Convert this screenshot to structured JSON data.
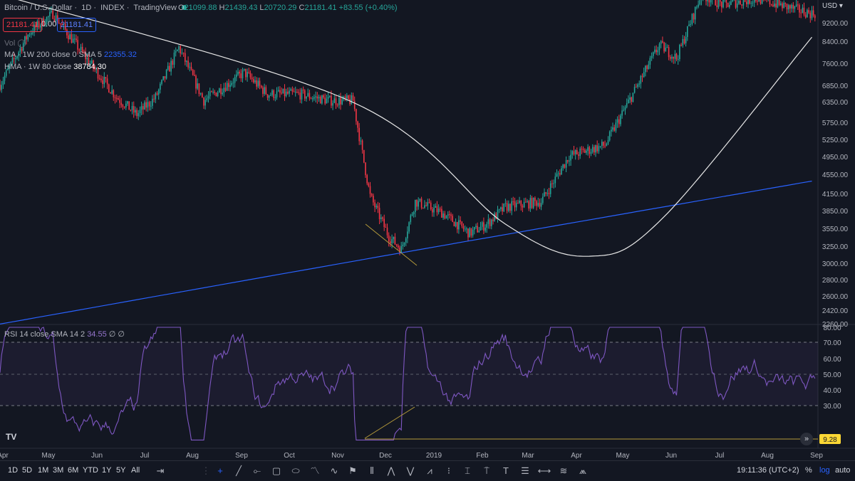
{
  "header": {
    "symbol": "Bitcoin / U.S. Dollar",
    "interval": "1D",
    "source": "INDEX",
    "platform": "TradingView",
    "ohlc": {
      "o_label": "O",
      "o": "21099.88",
      "h_label": "H",
      "h": "21439.43",
      "l_label": "L",
      "l": "20720.29",
      "c_label": "C",
      "c": "21181.41",
      "change": "+83.55 (+0.40%)"
    }
  },
  "trade": {
    "sell": "21181.41",
    "spread": "0.00",
    "buy": "21181.41"
  },
  "indicators": {
    "vol": "Vol",
    "ma_label": "MA · 1W 200 close 0 SMA 5",
    "ma_value": "22355.32",
    "hma_label": "HMA · 1W 80 close",
    "hma_value": "38784.30"
  },
  "rsi": {
    "label": "RSI 14 close SMA 14 2",
    "value": "34.55",
    "extra": "∅ ∅",
    "last": "9.28"
  },
  "currency": "USD",
  "price_axis": [
    "9200.00",
    "8400.00",
    "7600.00",
    "6850.00",
    "6350.00",
    "5750.00",
    "5250.00",
    "4950.00",
    "4550.00",
    "4150.00",
    "3850.00",
    "3550.00",
    "3250.00",
    "3000.00",
    "2800.00",
    "2600.00",
    "2420.00",
    "2260.00"
  ],
  "rsi_axis": [
    "80.00",
    "70.00",
    "60.00",
    "50.00",
    "40.00",
    "30.00"
  ],
  "time_axis": [
    "Apr",
    "May",
    "Jun",
    "Jul",
    "Aug",
    "Sep",
    "Oct",
    "Nov",
    "Dec",
    "2019",
    "Feb",
    "Mar",
    "Apr",
    "May",
    "Jun",
    "Jul",
    "Aug",
    "Sep"
  ],
  "toolbar": {
    "ranges": [
      "1D",
      "5D",
      "1M",
      "3M",
      "6M",
      "YTD",
      "1Y",
      "5Y",
      "All"
    ],
    "clock": "19:11:36 (UTC+2)",
    "percent": "%",
    "log": "log",
    "auto": "auto"
  },
  "colors": {
    "up": "#26a69a",
    "down": "#f23645",
    "ma": "#2962ff",
    "hma": "#e8e8e8",
    "rsi": "#7e57c2",
    "trend": "#b59a3a"
  },
  "chart_data": {
    "type": "candlestick",
    "y_scale": "log",
    "x": [
      "2018-04",
      "2018-05",
      "2018-06",
      "2018-07",
      "2018-08",
      "2018-09",
      "2018-10",
      "2018-11",
      "2018-12",
      "2019-01",
      "2019-02",
      "2019-03",
      "2019-04",
      "2019-05",
      "2019-06",
      "2019-07",
      "2019-08",
      "2019-09"
    ],
    "close_path": [
      [
        "2018-04",
        6900
      ],
      [
        "2018-04-20",
        8800
      ],
      [
        "2018-05-05",
        9600
      ],
      [
        "2018-05-20",
        8300
      ],
      [
        "2018-06-01",
        7400
      ],
      [
        "2018-06-15",
        6500
      ],
      [
        "2018-06-28",
        6000
      ],
      [
        "2018-07-10",
        6500
      ],
      [
        "2018-07-25",
        8200
      ],
      [
        "2018-08-10",
        6400
      ],
      [
        "2018-08-25",
        6900
      ],
      [
        "2018-09-05",
        7300
      ],
      [
        "2018-09-20",
        6600
      ],
      [
        "2018-10-10",
        6600
      ],
      [
        "2018-10-30",
        6400
      ],
      [
        "2018-11-14",
        6400
      ],
      [
        "2018-11-20",
        5000
      ],
      [
        "2018-11-25",
        4100
      ],
      [
        "2018-12-07",
        3400
      ],
      [
        "2018-12-15",
        3200
      ],
      [
        "2018-12-24",
        4000
      ],
      [
        "2019-01-10",
        3800
      ],
      [
        "2019-01-28",
        3450
      ],
      [
        "2019-02-08",
        3600
      ],
      [
        "2019-02-20",
        3900
      ],
      [
        "2019-03-15",
        4000
      ],
      [
        "2019-04-02",
        4950
      ],
      [
        "2019-04-25",
        5200
      ],
      [
        "2019-05-10",
        6350
      ],
      [
        "2019-05-30",
        8300
      ],
      [
        "2019-06-10",
        7800
      ],
      [
        "2019-06-26",
        10500
      ],
      [
        "2019-07-10",
        10000
      ],
      [
        "2019-08-01",
        10300
      ],
      [
        "2019-08-25",
        9800
      ],
      [
        "2019-09-05",
        9600
      ]
    ],
    "ma_200w": [
      [
        "2018-04",
        2260
      ],
      [
        "2018-12-15",
        3150
      ],
      [
        "2019-09-05",
        4400
      ]
    ],
    "hma_80w": [
      [
        "2018-04",
        10500
      ],
      [
        "2018-11-14",
        6350
      ],
      [
        "2019-02-20",
        3600
      ],
      [
        "2019-04-15",
        3100
      ],
      [
        "2019-06-01",
        3700
      ],
      [
        "2019-09-05",
        8600
      ]
    ],
    "rsi_range": [
      30,
      80
    ],
    "rsi_last": 9.28
  }
}
